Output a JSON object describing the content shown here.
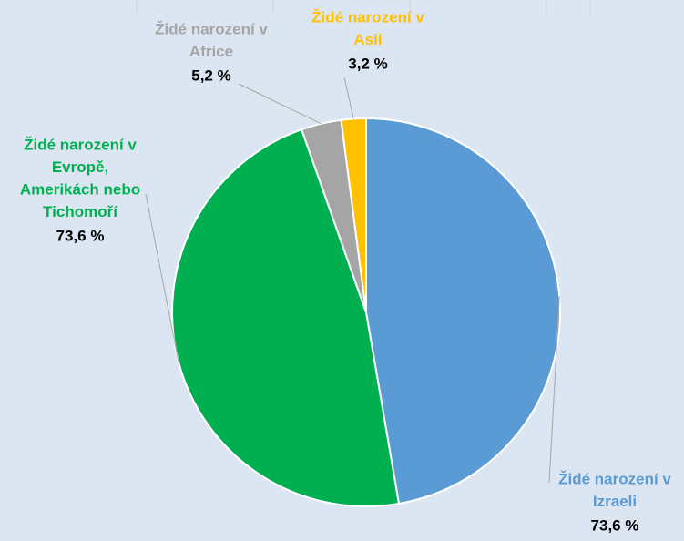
{
  "chart_data": {
    "type": "pie",
    "categories": [
      [
        "Židé narození v",
        "Izraeli"
      ],
      [
        "Židé narození v",
        "Evropě,",
        "Amerikách nebo",
        "Tichomoří"
      ],
      [
        "Židé narození v",
        "Africe"
      ],
      [
        "Židé narození v",
        "Asii"
      ]
    ],
    "values": [
      73.6,
      73.6,
      5.2,
      3.2
    ],
    "value_labels": [
      "73,6 %",
      "73,6 %",
      "5,2 %",
      "3,2 %"
    ],
    "colors": [
      "#5b9bd5",
      "#00b050",
      "#a5a5a5",
      "#ffc000"
    ]
  }
}
